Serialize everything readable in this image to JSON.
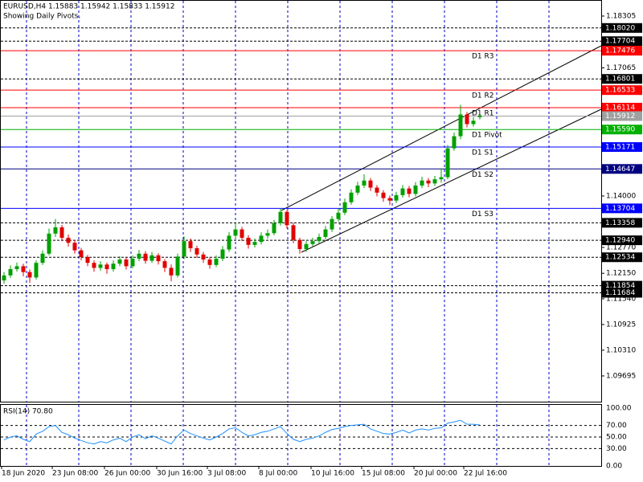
{
  "header": {
    "symbol_line": "EURUSD,H4  1.15883 1.15942 1.15833 1.15912",
    "note": "Showing Daily Pivots."
  },
  "chart_data": [
    {
      "type": "candlestick",
      "up_color": "#00a000",
      "down_color": "#e00000",
      "open": [
        1.1198,
        1.121,
        1.1225,
        1.1232,
        1.1218,
        1.1205,
        1.124,
        1.1262,
        1.131,
        1.1325,
        1.13,
        1.1288,
        1.127,
        1.1254,
        1.124,
        1.1228,
        1.1236,
        1.1225,
        1.1238,
        1.1248,
        1.1232,
        1.125,
        1.1262,
        1.1245,
        1.1258,
        1.1244,
        1.1228,
        1.121,
        1.1255,
        1.1292,
        1.1275,
        1.126,
        1.1248,
        1.1235,
        1.125,
        1.1272,
        1.1305,
        1.132,
        1.13,
        1.1283,
        1.129,
        1.1305,
        1.1311,
        1.1335,
        1.1362,
        1.133,
        1.1295,
        1.1273,
        1.1285,
        1.1292,
        1.1302,
        1.132,
        1.1345,
        1.136,
        1.1385,
        1.1408,
        1.1425,
        1.1437,
        1.142,
        1.1408,
        1.1395,
        1.1389,
        1.1402,
        1.1418,
        1.1405,
        1.1425,
        1.1437,
        1.143,
        1.144,
        1.1445,
        1.1514,
        1.1543,
        1.1595,
        1.1572,
        1.15883
      ],
      "high": [
        1.1218,
        1.1234,
        1.1241,
        1.1238,
        1.1224,
        1.1246,
        1.127,
        1.1322,
        1.1345,
        1.1331,
        1.1308,
        1.1294,
        1.1276,
        1.1259,
        1.1246,
        1.1244,
        1.1241,
        1.1246,
        1.1256,
        1.1253,
        1.1258,
        1.1271,
        1.1268,
        1.1266,
        1.1263,
        1.1249,
        1.1236,
        1.1262,
        1.1303,
        1.1298,
        1.1281,
        1.1266,
        1.1254,
        1.1258,
        1.128,
        1.1314,
        1.1335,
        1.1326,
        1.1306,
        1.1298,
        1.1313,
        1.132,
        1.1343,
        1.137,
        1.1366,
        1.1336,
        1.13,
        1.1292,
        1.13,
        1.131,
        1.1328,
        1.1352,
        1.137,
        1.1394,
        1.1416,
        1.1434,
        1.1452,
        1.1443,
        1.1426,
        1.1414,
        1.1401,
        1.141,
        1.1426,
        1.1424,
        1.1433,
        1.1446,
        1.1443,
        1.1448,
        1.1466,
        1.1522,
        1.1552,
        1.1618,
        1.1601,
        1.1589,
        1.15942
      ],
      "low": [
        1.119,
        1.1204,
        1.1219,
        1.1208,
        1.1192,
        1.12,
        1.1235,
        1.1258,
        1.1302,
        1.1292,
        1.1279,
        1.1262,
        1.1246,
        1.1232,
        1.1219,
        1.1221,
        1.1214,
        1.1219,
        1.1232,
        1.1224,
        1.1227,
        1.1244,
        1.1238,
        1.124,
        1.1236,
        1.1218,
        1.1196,
        1.1205,
        1.1249,
        1.1266,
        1.1252,
        1.124,
        1.1226,
        1.123,
        1.1244,
        1.1266,
        1.1298,
        1.1292,
        1.1274,
        1.1277,
        1.1284,
        1.1298,
        1.1306,
        1.1329,
        1.1322,
        1.1287,
        1.1262,
        1.1266,
        1.1279,
        1.1286,
        1.1296,
        1.1314,
        1.1339,
        1.1354,
        1.1379,
        1.1402,
        1.1419,
        1.1412,
        1.1399,
        1.1386,
        1.1378,
        1.1383,
        1.1396,
        1.1397,
        1.1399,
        1.1419,
        1.1421,
        1.1424,
        1.1432,
        1.144,
        1.1508,
        1.1536,
        1.1564,
        1.1566,
        1.15833
      ],
      "close": [
        1.121,
        1.1225,
        1.1232,
        1.1218,
        1.1205,
        1.124,
        1.1262,
        1.131,
        1.1325,
        1.13,
        1.1288,
        1.127,
        1.1254,
        1.124,
        1.1228,
        1.1236,
        1.1225,
        1.1238,
        1.1248,
        1.1232,
        1.125,
        1.1262,
        1.1245,
        1.1258,
        1.1244,
        1.1228,
        1.121,
        1.1255,
        1.1292,
        1.1275,
        1.126,
        1.1248,
        1.1235,
        1.125,
        1.1272,
        1.1305,
        1.132,
        1.13,
        1.1283,
        1.129,
        1.1305,
        1.1311,
        1.1335,
        1.1362,
        1.133,
        1.1295,
        1.1273,
        1.1285,
        1.1292,
        1.1302,
        1.132,
        1.1345,
        1.136,
        1.1385,
        1.1408,
        1.1425,
        1.1437,
        1.142,
        1.1408,
        1.1395,
        1.1389,
        1.1402,
        1.1418,
        1.1405,
        1.1425,
        1.1437,
        1.143,
        1.144,
        1.1445,
        1.1514,
        1.1543,
        1.1595,
        1.1572,
        1.158,
        1.15912
      ],
      "xlim": [
        -0.625,
        92.875
      ],
      "xticks": [
        {
          "value": -0.375,
          "label": "18 Jun 2020"
        },
        {
          "value": 7.5,
          "label": "23 Jun 08:00"
        },
        {
          "value": 15.625,
          "label": "26 Jun 00:00"
        },
        {
          "value": 23.75,
          "label": "30 Jun 16:00"
        },
        {
          "value": 31.625,
          "label": "3 Jul 08:00"
        },
        {
          "value": 39.625,
          "label": "8 Jul 00:00"
        },
        {
          "value": 47.75,
          "label": "10 Jul 16:00"
        },
        {
          "value": 55.625,
          "label": "15 Jul 08:00"
        },
        {
          "value": 63.75,
          "label": "20 Jul 00:00"
        },
        {
          "value": 71.5,
          "label": "22 Jul 16:00"
        }
      ],
      "ylim": [
        1.09079,
        1.18689
      ],
      "yticks": [
        1.18305,
        1.17065,
        {
          "value": 1.14,
          "label": "1.14000"
        },
        {
          "value": 1.1277,
          "label": "1.12770"
        },
        {
          "value": 1.1215,
          "label": "1.12150"
        },
        {
          "value": 1.1154,
          "label": "1.11540"
        },
        1.10925,
        {
          "value": 1.1031,
          "label": "1.10310"
        },
        1.09695
      ],
      "levels": [
        {
          "value": 1.1802,
          "label": "1.18020",
          "color": "#000000",
          "style": "dashed"
        },
        {
          "value": 1.17704,
          "label": "1.17704",
          "color": "#000000",
          "style": "dashed"
        },
        {
          "name": "D1 R3",
          "value": 1.17476,
          "label": "1.17476",
          "color": "#ff0000",
          "style": "solid"
        },
        {
          "value": 1.16801,
          "label": "1.16801",
          "color": "#000000",
          "style": "dashed"
        },
        {
          "name": "D1 R2",
          "value": 1.16533,
          "label": "1.16533",
          "color": "#ff0000",
          "style": "solid"
        },
        {
          "name": "D1 R1",
          "value": 1.16114,
          "label": "1.16114",
          "color": "#ff0000",
          "style": "solid"
        },
        {
          "value": 1.15912,
          "label": "1.15912",
          "color": "#a0a0a0",
          "style": "solid"
        },
        {
          "name": "D1 Pivot",
          "value": 1.1559,
          "label": "1.15590",
          "color": "#00b000",
          "style": "solid"
        },
        {
          "name": "D1 S1",
          "value": 1.15171,
          "label": "1.15171",
          "color": "#0000ff",
          "style": "solid"
        },
        {
          "name": "D1 S2",
          "value": 1.14647,
          "label": "1.14647",
          "color": "#000080",
          "style": "solid"
        },
        {
          "name": "D1 S3",
          "value": 1.13704,
          "label": "1.13704",
          "color": "#0000ff",
          "style": "solid"
        },
        {
          "value": 1.13358,
          "label": "1.13358",
          "color": "#000000",
          "style": "dashed"
        },
        {
          "value": 1.1294,
          "label": "1.12940",
          "color": "#000000",
          "style": "dashed"
        },
        {
          "value": 1.12534,
          "label": "1.12534",
          "color": "#000000",
          "style": "dashed"
        },
        {
          "value": 1.11854,
          "label": "1.11854",
          "color": "#000000",
          "style": "dashed"
        },
        {
          "value": 1.11684,
          "label": "1.11684",
          "color": "#000000",
          "style": "dashed"
        }
      ]
    },
    {
      "type": "line",
      "title": "RSI(14) 70.80",
      "color": "#1e90ff",
      "values": [
        45,
        50,
        52,
        46,
        42,
        55,
        60,
        68,
        70,
        58,
        54,
        48,
        44,
        40,
        38,
        42,
        40,
        45,
        48,
        42,
        50,
        54,
        47,
        52,
        48,
        43,
        38,
        52,
        62,
        56,
        52,
        48,
        45,
        50,
        56,
        64,
        66,
        58,
        52,
        54,
        58,
        60,
        64,
        68,
        56,
        46,
        42,
        46,
        48,
        52,
        58,
        63,
        65,
        68,
        70,
        71,
        72,
        64,
        60,
        56,
        55,
        58,
        62,
        57,
        62,
        64,
        62,
        65,
        66,
        74,
        76,
        79,
        72,
        72,
        70.8
      ],
      "ylim": [
        0,
        100
      ],
      "yticks": [
        {
          "value": 100,
          "label": "100.00"
        },
        {
          "value": 70,
          "label": "70.00"
        },
        {
          "value": 50,
          "label": "50.00"
        },
        {
          "value": 30,
          "label": "30.00"
        },
        {
          "value": 0,
          "label": "0.00"
        }
      ]
    }
  ]
}
